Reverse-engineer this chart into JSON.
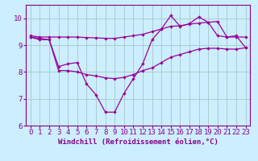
{
  "x": [
    0,
    1,
    2,
    3,
    4,
    5,
    6,
    7,
    8,
    9,
    10,
    11,
    12,
    13,
    14,
    15,
    16,
    17,
    18,
    19,
    20,
    21,
    22,
    23
  ],
  "line_zigzag": [
    9.3,
    9.2,
    9.2,
    8.2,
    8.3,
    8.35,
    7.55,
    7.15,
    6.5,
    6.5,
    7.2,
    7.75,
    8.3,
    9.2,
    9.6,
    10.1,
    9.7,
    9.8,
    10.05,
    9.85,
    9.35,
    9.3,
    9.35,
    8.9
  ],
  "line_top": [
    9.35,
    9.3,
    9.3,
    9.3,
    9.3,
    9.3,
    9.28,
    9.27,
    9.25,
    9.25,
    9.3,
    9.35,
    9.4,
    9.5,
    9.6,
    9.7,
    9.72,
    9.78,
    9.82,
    9.85,
    9.88,
    9.3,
    9.3,
    9.3
  ],
  "line_bottom": [
    9.3,
    9.25,
    9.2,
    8.05,
    8.05,
    8.0,
    7.9,
    7.85,
    7.78,
    7.75,
    7.8,
    7.9,
    8.05,
    8.15,
    8.35,
    8.55,
    8.65,
    8.75,
    8.85,
    8.88,
    8.88,
    8.85,
    8.85,
    8.9
  ],
  "line_color": "#990099",
  "bg_color": "#cceeff",
  "grid_color": "#aacccc",
  "xlabel": "Windchill (Refroidissement éolien,°C)",
  "ylim": [
    6,
    10.5
  ],
  "xlim": [
    -0.5,
    23.5
  ],
  "yticks": [
    6,
    7,
    8,
    9,
    10
  ],
  "xticks": [
    0,
    1,
    2,
    3,
    4,
    5,
    6,
    7,
    8,
    9,
    10,
    11,
    12,
    13,
    14,
    15,
    16,
    17,
    18,
    19,
    20,
    21,
    22,
    23
  ],
  "font_color": "#880088",
  "tick_fontsize": 6.5,
  "xlabel_fontsize": 6.5
}
